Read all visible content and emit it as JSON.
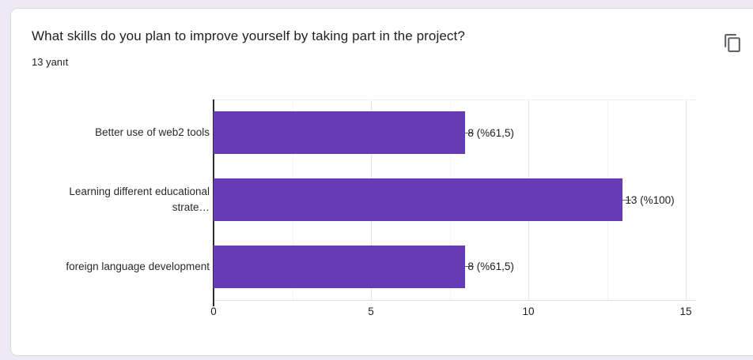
{
  "header": {
    "title": "What skills do you plan to improve yourself by taking part in the project?",
    "response_count": "13 yanıt",
    "copy_icon": "copy-icon"
  },
  "chart_data": {
    "type": "bar",
    "orientation": "horizontal",
    "categories": [
      "Better use of web2 tools",
      "Learning different educational\nstrate…",
      "foreign language development"
    ],
    "values": [
      8,
      13,
      8
    ],
    "value_labels": [
      "8 (%61,5)",
      "13 (%100)",
      "8 (%61,5)"
    ],
    "x_ticks": [
      0,
      5,
      10,
      15
    ],
    "xlim": [
      0,
      15
    ],
    "grid": true,
    "legend": "none",
    "bar_color": "#673ab7"
  }
}
